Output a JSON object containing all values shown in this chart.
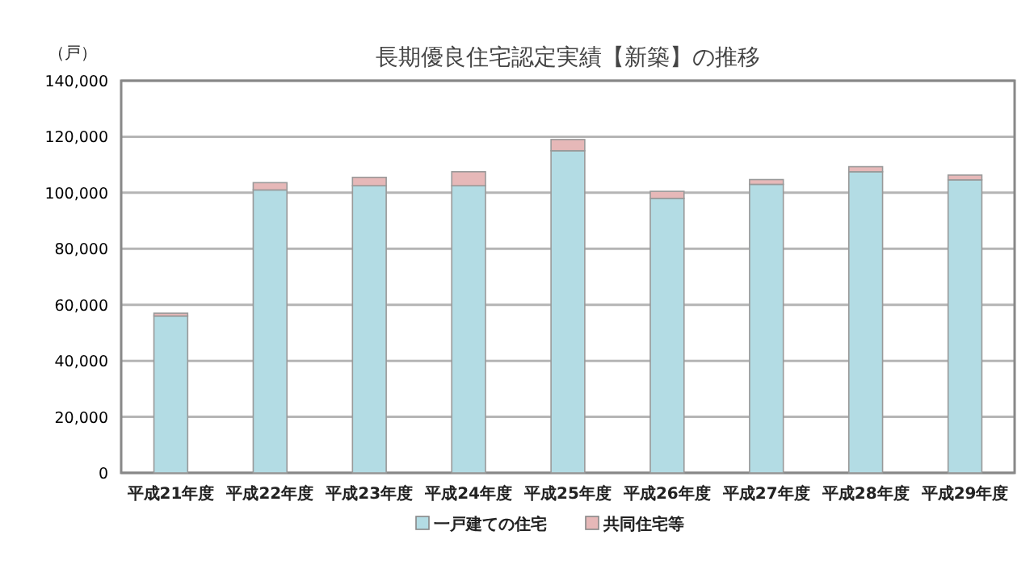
{
  "chart_data": {
    "type": "bar",
    "title": "長期優良住宅認定実績【新築】の推移",
    "ylabel": "（戸）",
    "stacked": true,
    "grid": "y",
    "legend": "bottom",
    "categories": [
      "平成21年度",
      "平成22年度",
      "平成23年度",
      "平成24年度",
      "平成25年度",
      "平成26年度",
      "平成27年度",
      "平成28年度",
      "平成29年度"
    ],
    "series": [
      {
        "name": "一戸建ての住宅",
        "color": "#b3dce4",
        "values": [
          56000,
          101000,
          102500,
          102500,
          115000,
          98000,
          103000,
          107500,
          104600
        ]
      },
      {
        "name": "共同住宅等",
        "color": "#e6b8b8",
        "values": [
          1000,
          2600,
          3000,
          5000,
          4000,
          2500,
          1700,
          1800,
          1700
        ]
      }
    ],
    "ylim": [
      0,
      140000
    ],
    "yticks": [
      {
        "value": 0,
        "label": "0"
      },
      {
        "value": 20000,
        "label": "20,000"
      },
      {
        "value": 40000,
        "label": "40,000"
      },
      {
        "value": 60000,
        "label": "60,000"
      },
      {
        "value": 80000,
        "label": "80,000"
      },
      {
        "value": 100000,
        "label": "100,000"
      },
      {
        "value": 120000,
        "label": "120,000"
      },
      {
        "value": 140000,
        "label": "140,000"
      }
    ]
  }
}
